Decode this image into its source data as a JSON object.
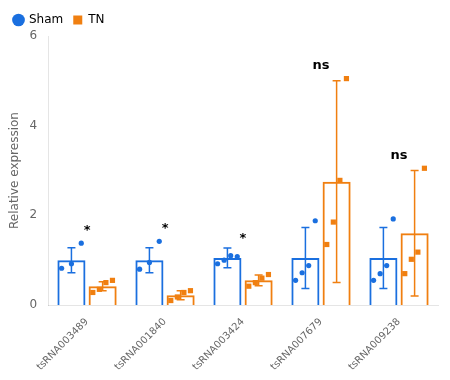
{
  "chart_data": {
    "type": "bar",
    "categories": [
      "tsRNA003489",
      "tsRNA001840",
      "tsRNA003424",
      "tsRNA007679",
      "tsRNA009238"
    ],
    "series": [
      {
        "name": "Sham",
        "color": "#1a6fdf",
        "marker": "circle",
        "values": [
          1.0,
          1.0,
          1.05,
          1.05,
          1.05
        ],
        "errors": [
          0.28,
          0.28,
          0.22,
          0.68,
          0.68
        ],
        "dots": [
          [
            0.82,
            0.92,
            1.38
          ],
          [
            0.8,
            0.95,
            1.42
          ],
          [
            0.92,
            1.0,
            1.1,
            1.08
          ],
          [
            0.55,
            0.72,
            0.88,
            1.88
          ],
          [
            0.55,
            0.7,
            0.88,
            1.92
          ]
        ]
      },
      {
        "name": "TN",
        "color": "#f07f10",
        "marker": "square",
        "values": [
          0.42,
          0.22,
          0.55,
          2.75,
          1.6
        ],
        "errors": [
          0.1,
          0.1,
          0.12,
          2.25,
          1.4
        ],
        "dots": [
          [
            0.28,
            0.35,
            0.5,
            0.55
          ],
          [
            0.1,
            0.18,
            0.28,
            0.32
          ],
          [
            0.42,
            0.5,
            0.6,
            0.68
          ],
          [
            1.35,
            1.85,
            2.78,
            5.05
          ],
          [
            0.7,
            1.02,
            1.18,
            3.05
          ]
        ]
      }
    ],
    "annotations": [
      "*",
      "*",
      "*",
      "ns",
      "ns"
    ],
    "ylabel": "Relative expression",
    "ylim": [
      0,
      6
    ],
    "yticks": [
      0,
      2,
      4,
      6
    ],
    "grid": false,
    "legend": "upper left"
  }
}
